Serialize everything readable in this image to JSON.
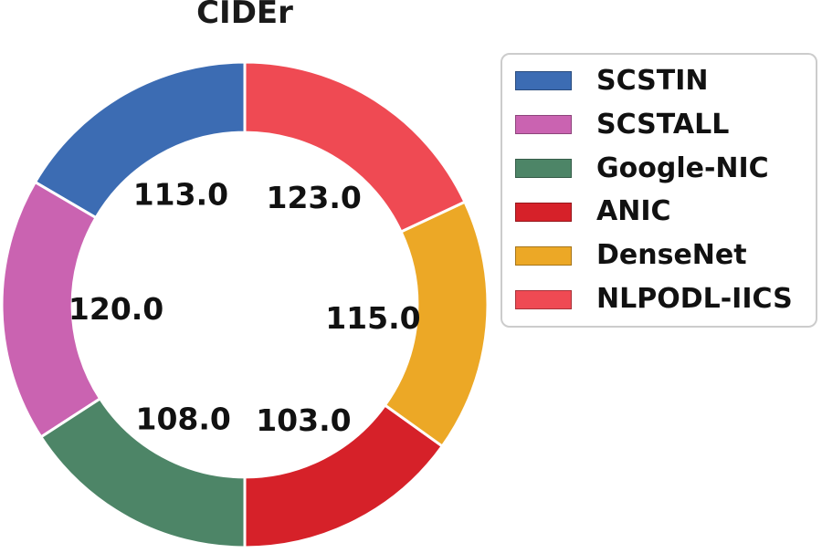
{
  "chart_data": {
    "type": "pie",
    "variant": "donut",
    "title": "CIDEr",
    "categories": [
      "SCSTIN",
      "SCSTALL",
      "Google-NIC",
      "ANIC",
      "DenseNet",
      "NLPODL-IICS"
    ],
    "values": [
      113.0,
      120.0,
      108.0,
      103.0,
      115.0,
      123.0
    ],
    "value_labels": [
      "113.0",
      "120.0",
      "108.0",
      "103.0",
      "115.0",
      "123.0"
    ],
    "colors": [
      "#3c6cb3",
      "#ca63b1",
      "#4d8567",
      "#d62129",
      "#eca826",
      "#ef4a53"
    ],
    "start_angle_deg": 90,
    "direction": "counterclockwise",
    "donut_hole_ratio": 0.71,
    "label_radius_ratio": 0.53,
    "wedge_edge_color": "#ffffff",
    "label_color": "#111111",
    "legend_position": "right",
    "legend_labels": [
      "SCSTIN",
      "SCSTALL",
      "Google-NIC",
      "ANIC",
      "DenseNet",
      "NLPODL-IICS"
    ]
  }
}
